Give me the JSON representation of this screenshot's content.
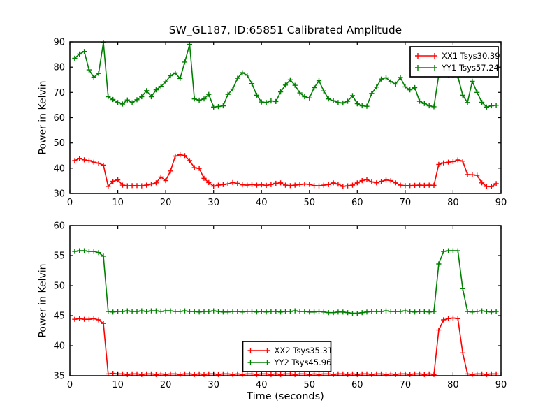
{
  "figure": {
    "title": "SW_GL187, ID:65851 Calibrated Amplitude",
    "background_color": "#ffffff",
    "axis_color": "#000000"
  },
  "chart_data": [
    {
      "type": "line",
      "title": "SW_GL187, ID:65851 Calibrated Amplitude",
      "xlabel": "",
      "ylabel": "Power in Kelvin",
      "xlim": [
        0,
        90
      ],
      "ylim": [
        30,
        90
      ],
      "xticks": [
        0,
        10,
        20,
        30,
        40,
        50,
        60,
        70,
        80,
        90
      ],
      "yticks": [
        30,
        40,
        50,
        60,
        70,
        80,
        90
      ],
      "grid": false,
      "legend_position": "upper right",
      "marker": "plus",
      "x": [
        1,
        2,
        3,
        4,
        5,
        6,
        7,
        8,
        9,
        10,
        11,
        12,
        13,
        14,
        15,
        16,
        17,
        18,
        19,
        20,
        21,
        22,
        23,
        24,
        25,
        26,
        27,
        28,
        29,
        30,
        31,
        32,
        33,
        34,
        35,
        36,
        37,
        38,
        39,
        40,
        41,
        42,
        43,
        44,
        45,
        46,
        47,
        48,
        49,
        50,
        51,
        52,
        53,
        54,
        55,
        56,
        57,
        58,
        59,
        60,
        61,
        62,
        63,
        64,
        65,
        66,
        67,
        68,
        69,
        70,
        71,
        72,
        73,
        74,
        75,
        76,
        77,
        78,
        79,
        80,
        81,
        82,
        83,
        84,
        85,
        86,
        87,
        88,
        89
      ],
      "series": [
        {
          "name": "XX1 Tsys30.39",
          "color": "#ff0000",
          "values": [
            43.0,
            43.9,
            43.3,
            43.0,
            42.4,
            42.0,
            41.2,
            32.8,
            34.8,
            35.4,
            33.3,
            33.0,
            33.1,
            33.1,
            33.0,
            33.3,
            33.7,
            34.2,
            36.5,
            35.1,
            38.9,
            44.8,
            45.3,
            45.0,
            43.0,
            40.2,
            39.9,
            36.0,
            34.3,
            32.9,
            33.3,
            33.5,
            33.8,
            34.3,
            34.0,
            33.4,
            33.3,
            33.5,
            33.3,
            33.4,
            33.2,
            33.5,
            34.0,
            34.2,
            33.3,
            33.1,
            33.3,
            33.5,
            33.7,
            33.6,
            33.1,
            33.0,
            33.3,
            33.5,
            34.2,
            33.7,
            32.8,
            33.0,
            33.3,
            34.2,
            35.1,
            35.5,
            34.6,
            34.2,
            34.8,
            35.3,
            35.1,
            34.2,
            33.3,
            33.1,
            33.1,
            33.2,
            33.3,
            33.2,
            33.3,
            33.2,
            41.5,
            42.1,
            42.4,
            42.6,
            43.3,
            42.8,
            37.5,
            37.4,
            37.2,
            34.2,
            32.8,
            32.7,
            33.9
          ]
        },
        {
          "name": "YY1 Tsys57.24",
          "color": "#008000",
          "values": [
            83.5,
            85.2,
            86.2,
            78.9,
            76.0,
            77.5,
            89.8,
            68.3,
            67.2,
            66.0,
            65.4,
            67.0,
            65.9,
            67.1,
            68.3,
            70.7,
            68.3,
            71.0,
            72.4,
            74.2,
            76.6,
            77.7,
            75.5,
            82.0,
            89.0,
            67.4,
            66.9,
            67.4,
            69.2,
            64.2,
            64.4,
            64.7,
            69.2,
            71.3,
            75.6,
            77.8,
            76.8,
            73.5,
            68.9,
            66.2,
            66.0,
            66.6,
            66.4,
            70.2,
            72.9,
            75.0,
            72.8,
            69.8,
            68.3,
            67.8,
            71.9,
            74.6,
            70.6,
            67.4,
            66.7,
            66.0,
            65.8,
            66.5,
            68.7,
            65.5,
            64.7,
            64.5,
            69.6,
            72.1,
            75.3,
            75.8,
            74.3,
            73.3,
            75.9,
            72.2,
            71.0,
            71.9,
            66.5,
            65.6,
            64.7,
            64.3,
            76.9,
            77.6,
            76.7,
            76.6,
            76.3,
            68.9,
            66.0,
            74.4,
            70.0,
            66.1,
            64.2,
            64.7,
            64.9
          ]
        }
      ]
    },
    {
      "type": "line",
      "title": "",
      "xlabel": "Time (seconds)",
      "ylabel": "Power in Kelvin",
      "xlim": [
        0,
        90
      ],
      "ylim": [
        35,
        60
      ],
      "xticks": [
        0,
        10,
        20,
        30,
        40,
        50,
        60,
        70,
        80,
        90
      ],
      "yticks": [
        35,
        40,
        45,
        50,
        55,
        60
      ],
      "grid": false,
      "legend_position": "lower center",
      "marker": "plus",
      "x": [
        1,
        2,
        3,
        4,
        5,
        6,
        7,
        8,
        9,
        10,
        11,
        12,
        13,
        14,
        15,
        16,
        17,
        18,
        19,
        20,
        21,
        22,
        23,
        24,
        25,
        26,
        27,
        28,
        29,
        30,
        31,
        32,
        33,
        34,
        35,
        36,
        37,
        38,
        39,
        40,
        41,
        42,
        43,
        44,
        45,
        46,
        47,
        48,
        49,
        50,
        51,
        52,
        53,
        54,
        55,
        56,
        57,
        58,
        59,
        60,
        61,
        62,
        63,
        64,
        65,
        66,
        67,
        68,
        69,
        70,
        71,
        72,
        73,
        74,
        75,
        76,
        77,
        78,
        79,
        80,
        81,
        82,
        83,
        84,
        85,
        86,
        87,
        88,
        89
      ],
      "series": [
        {
          "name": "XX2 Tsys35.31",
          "color": "#ff0000",
          "values": [
            44.4,
            44.5,
            44.4,
            44.4,
            44.5,
            44.3,
            43.7,
            35.3,
            35.4,
            35.3,
            35.3,
            35.2,
            35.3,
            35.3,
            35.2,
            35.3,
            35.3,
            35.2,
            35.3,
            35.2,
            35.3,
            35.3,
            35.2,
            35.3,
            35.3,
            35.2,
            35.3,
            35.2,
            35.3,
            35.3,
            35.2,
            35.3,
            35.3,
            35.2,
            35.3,
            35.2,
            35.3,
            35.3,
            35.2,
            35.3,
            35.3,
            35.2,
            35.3,
            35.2,
            35.3,
            35.3,
            35.2,
            35.3,
            35.3,
            35.2,
            35.3,
            35.2,
            35.3,
            35.3,
            35.2,
            35.3,
            35.3,
            35.2,
            35.3,
            35.2,
            35.3,
            35.3,
            35.2,
            35.3,
            35.3,
            35.2,
            35.3,
            35.2,
            35.3,
            35.3,
            35.2,
            35.3,
            35.3,
            35.2,
            35.3,
            35.2,
            42.6,
            44.3,
            44.5,
            44.6,
            44.5,
            38.8,
            35.3,
            35.2,
            35.3,
            35.3,
            35.2,
            35.3,
            35.3
          ]
        },
        {
          "name": "YY2 Tsys45.96",
          "color": "#008000",
          "values": [
            55.7,
            55.8,
            55.8,
            55.7,
            55.7,
            55.5,
            54.9,
            45.7,
            45.6,
            45.7,
            45.7,
            45.8,
            45.7,
            45.7,
            45.8,
            45.7,
            45.8,
            45.8,
            45.7,
            45.8,
            45.8,
            45.7,
            45.7,
            45.8,
            45.7,
            45.7,
            45.6,
            45.7,
            45.7,
            45.8,
            45.7,
            45.6,
            45.6,
            45.7,
            45.7,
            45.6,
            45.7,
            45.7,
            45.6,
            45.7,
            45.6,
            45.7,
            45.7,
            45.6,
            45.7,
            45.7,
            45.8,
            45.7,
            45.7,
            45.6,
            45.6,
            45.7,
            45.6,
            45.5,
            45.5,
            45.6,
            45.6,
            45.5,
            45.4,
            45.4,
            45.5,
            45.6,
            45.7,
            45.7,
            45.7,
            45.8,
            45.7,
            45.7,
            45.7,
            45.8,
            45.7,
            45.6,
            45.7,
            45.7,
            45.6,
            45.7,
            53.6,
            55.7,
            55.8,
            55.8,
            55.8,
            49.5,
            45.7,
            45.6,
            45.7,
            45.8,
            45.7,
            45.6,
            45.7
          ]
        }
      ]
    }
  ]
}
